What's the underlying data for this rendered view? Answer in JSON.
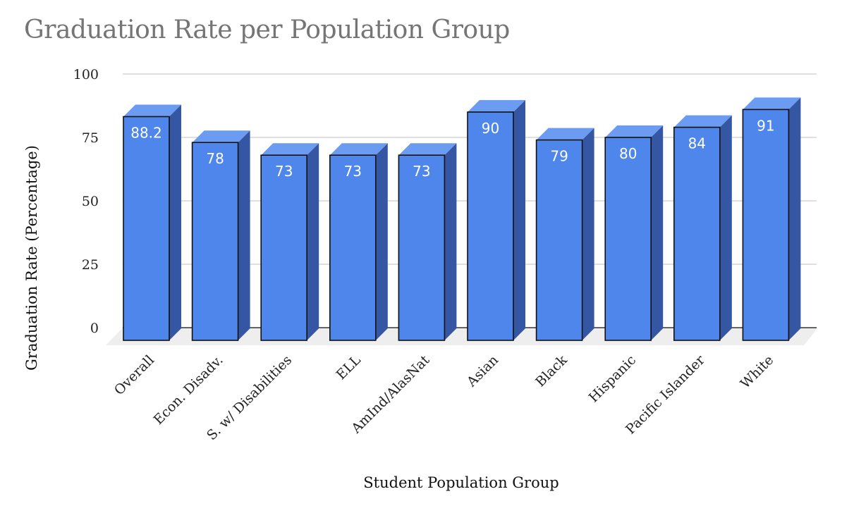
{
  "chart_data": {
    "type": "bar",
    "title": "Graduation Rate per Population Group",
    "xlabel": "Student Population Group",
    "ylabel": "Graduation Rate (Percentage)",
    "categories": [
      "Overall",
      "Econ. Disadv.",
      "S. w/ Disabilities",
      "ELL",
      "AmInd/AlasNat",
      "Asian",
      "Black",
      "Hispanic",
      "Pacific Islander",
      "White"
    ],
    "values": [
      88.2,
      78,
      73,
      73,
      73,
      90,
      79,
      80,
      84,
      91
    ],
    "data_labels": [
      "88.2",
      "78",
      "73",
      "73",
      "73",
      "90",
      "79",
      "80",
      "84",
      "91"
    ],
    "ylim": [
      0,
      100
    ],
    "yticks": [
      0,
      25,
      50,
      75,
      100
    ],
    "grid": true,
    "style": "3d",
    "colors": {
      "bar_front": "#4f86ec",
      "bar_top": "#6b9cf2",
      "bar_side": "#3557a3",
      "floor": "#eeeeee",
      "grid": "#cccccc",
      "title": "#757575",
      "label": "#ffffff"
    }
  }
}
